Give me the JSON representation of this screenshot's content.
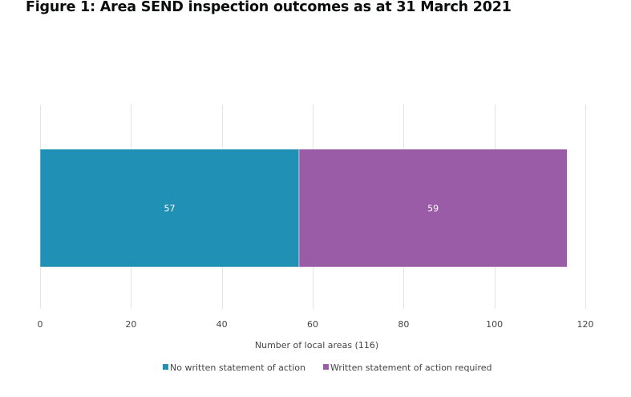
{
  "page": {
    "title": "Figure 1: Area SEND inspection outcomes as at 31 March 2021"
  },
  "chart_data": {
    "type": "bar",
    "orientation": "horizontal",
    "stacked": true,
    "categories": [
      ""
    ],
    "series": [
      {
        "name": "No written statement of action",
        "values": [
          57
        ],
        "color": "#2190b5"
      },
      {
        "name": "Written statement of action required",
        "values": [
          59
        ],
        "color": "#9b5ca7"
      }
    ],
    "data_labels": [
      "57",
      "59"
    ],
    "xlabel": "Number of local areas (116)",
    "xlim": [
      0,
      120
    ],
    "xticks": [
      0,
      20,
      40,
      60,
      80,
      100,
      120
    ],
    "grid": true,
    "legend": "bottom"
  }
}
